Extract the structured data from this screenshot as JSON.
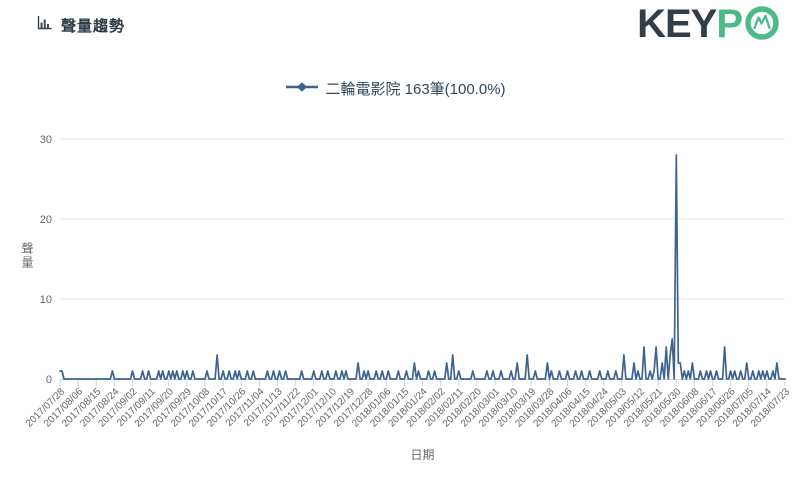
{
  "header": {
    "title": "聲量趨勢",
    "icon": "bar-chart-icon"
  },
  "logo": {
    "text_dark": "KEY",
    "text_green": "P",
    "mark": "line-chart-circle-icon",
    "color_dark": "#333c49",
    "color_green": "#4cba87"
  },
  "legend": {
    "label": "二輪電影院 163筆(100.0%)",
    "marker_color": "#3e6390"
  },
  "chart_data": {
    "type": "line",
    "title": "",
    "xlabel": "日期",
    "ylabel": "聲量",
    "ylim": [
      0,
      30
    ],
    "yticks": [
      0,
      10,
      20,
      30
    ],
    "grid": "horizontal",
    "legend_position": "top-center",
    "x_start": "2017/07/28",
    "x_end": "2018/07/23",
    "x_interval_days": 1,
    "x_tick_step_days": 9,
    "x_tick_labels": [
      "2017/07/28",
      "2017/08/06",
      "2017/08/15",
      "2017/08/24",
      "2017/09/02",
      "2017/09/11",
      "2017/09/20",
      "2017/09/29",
      "2017/10/08",
      "2017/10/17",
      "2017/10/26",
      "2017/11/04",
      "2017/11/13",
      "2017/11/22",
      "2017/12/01",
      "2017/12/10",
      "2017/12/19",
      "2017/12/28",
      "2018/01/06",
      "2018/01/15",
      "2018/01/24",
      "2018/02/02",
      "2018/02/11",
      "2018/02/20",
      "2018/03/01",
      "2018/03/10",
      "2018/03/19",
      "2018/03/28",
      "2018/04/06",
      "2018/04/15",
      "2018/04/24",
      "2018/05/03",
      "2018/05/12",
      "2018/05/21",
      "2018/05/30",
      "2018/06/08",
      "2018/06/17",
      "2018/06/26",
      "2018/07/05",
      "2018/07/14",
      "2018/07/23"
    ],
    "series": [
      {
        "name": "二輪電影院",
        "total_count": 163,
        "share": "100.0%",
        "color": "#3e6390",
        "baseline_value": 0,
        "points": [
          [
            "2017/07/28",
            1
          ],
          [
            "2017/07/29",
            1
          ],
          [
            "2017/08/23",
            1
          ],
          [
            "2017/09/02",
            1
          ],
          [
            "2017/09/07",
            1
          ],
          [
            "2017/09/10",
            1
          ],
          [
            "2017/09/15",
            1
          ],
          [
            "2017/09/17",
            1
          ],
          [
            "2017/09/20",
            1
          ],
          [
            "2017/09/22",
            1
          ],
          [
            "2017/09/24",
            1
          ],
          [
            "2017/09/27",
            1
          ],
          [
            "2017/09/29",
            1
          ],
          [
            "2017/10/02",
            1
          ],
          [
            "2017/10/09",
            1
          ],
          [
            "2017/10/14",
            3
          ],
          [
            "2017/10/17",
            1
          ],
          [
            "2017/10/20",
            1
          ],
          [
            "2017/10/23",
            1
          ],
          [
            "2017/10/25",
            1
          ],
          [
            "2017/10/29",
            1
          ],
          [
            "2017/11/01",
            1
          ],
          [
            "2017/11/08",
            1
          ],
          [
            "2017/11/11",
            1
          ],
          [
            "2017/11/14",
            1
          ],
          [
            "2017/11/17",
            1
          ],
          [
            "2017/11/25",
            1
          ],
          [
            "2017/12/01",
            1
          ],
          [
            "2017/12/05",
            1
          ],
          [
            "2017/12/08",
            1
          ],
          [
            "2017/12/12",
            1
          ],
          [
            "2017/12/15",
            1
          ],
          [
            "2017/12/17",
            1
          ],
          [
            "2017/12/23",
            2
          ],
          [
            "2017/12/26",
            1
          ],
          [
            "2017/12/28",
            1
          ],
          [
            "2018/01/01",
            1
          ],
          [
            "2018/01/04",
            1
          ],
          [
            "2018/01/07",
            1
          ],
          [
            "2018/01/12",
            1
          ],
          [
            "2018/01/16",
            1
          ],
          [
            "2018/01/20",
            2
          ],
          [
            "2018/01/22",
            1
          ],
          [
            "2018/01/27",
            1
          ],
          [
            "2018/01/30",
            1
          ],
          [
            "2018/02/05",
            2
          ],
          [
            "2018/02/08",
            3
          ],
          [
            "2018/02/11",
            1
          ],
          [
            "2018/02/18",
            1
          ],
          [
            "2018/02/25",
            1
          ],
          [
            "2018/02/28",
            1
          ],
          [
            "2018/03/04",
            1
          ],
          [
            "2018/03/09",
            1
          ],
          [
            "2018/03/12",
            2
          ],
          [
            "2018/03/17",
            3
          ],
          [
            "2018/03/21",
            1
          ],
          [
            "2018/03/27",
            2
          ],
          [
            "2018/03/29",
            1
          ],
          [
            "2018/04/02",
            1
          ],
          [
            "2018/04/06",
            1
          ],
          [
            "2018/04/10",
            1
          ],
          [
            "2018/04/13",
            1
          ],
          [
            "2018/04/17",
            1
          ],
          [
            "2018/04/22",
            1
          ],
          [
            "2018/04/26",
            1
          ],
          [
            "2018/04/30",
            1
          ],
          [
            "2018/05/04",
            3
          ],
          [
            "2018/05/09",
            2
          ],
          [
            "2018/05/11",
            1
          ],
          [
            "2018/05/14",
            4
          ],
          [
            "2018/05/17",
            1
          ],
          [
            "2018/05/19",
            1
          ],
          [
            "2018/05/20",
            4
          ],
          [
            "2018/05/23",
            2
          ],
          [
            "2018/05/25",
            4
          ],
          [
            "2018/05/27",
            3
          ],
          [
            "2018/05/28",
            5
          ],
          [
            "2018/05/30",
            28
          ],
          [
            "2018/05/31",
            2
          ],
          [
            "2018/06/01",
            2
          ],
          [
            "2018/06/03",
            1
          ],
          [
            "2018/06/05",
            1
          ],
          [
            "2018/06/07",
            2
          ],
          [
            "2018/06/11",
            1
          ],
          [
            "2018/06/14",
            1
          ],
          [
            "2018/06/16",
            1
          ],
          [
            "2018/06/19",
            1
          ],
          [
            "2018/06/23",
            4
          ],
          [
            "2018/06/26",
            1
          ],
          [
            "2018/06/28",
            1
          ],
          [
            "2018/07/01",
            1
          ],
          [
            "2018/07/04",
            2
          ],
          [
            "2018/07/07",
            1
          ],
          [
            "2018/07/10",
            1
          ],
          [
            "2018/07/12",
            1
          ],
          [
            "2018/07/14",
            1
          ],
          [
            "2018/07/17",
            1
          ],
          [
            "2018/07/19",
            2
          ]
        ]
      }
    ],
    "colors": {
      "grid": "#e6e6e6",
      "axis": "#ccd6eb",
      "tick_text": "#666666"
    }
  }
}
